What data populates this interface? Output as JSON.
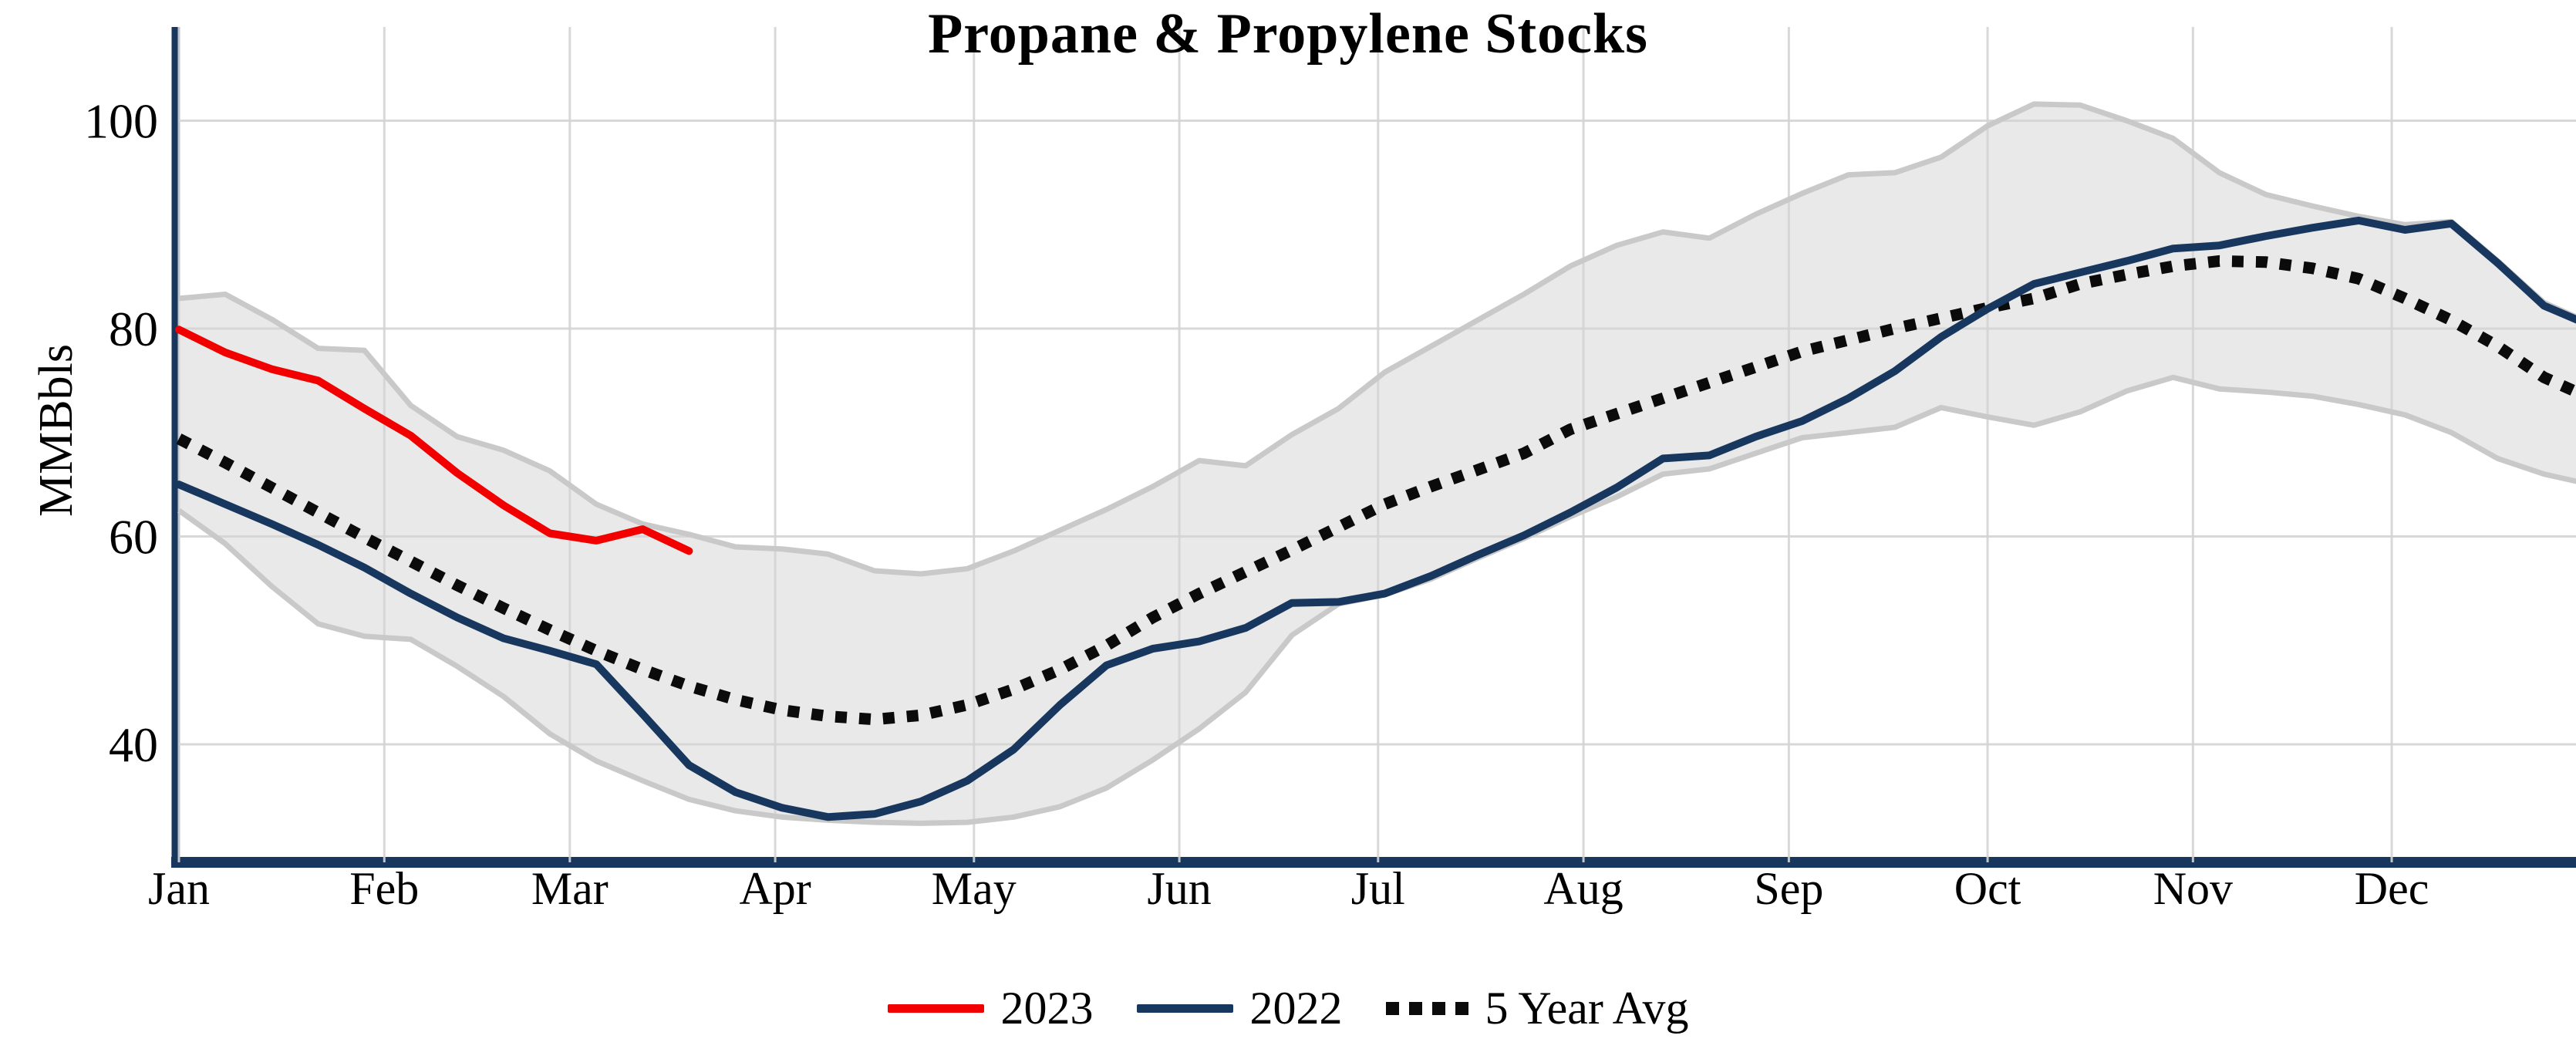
{
  "title": "Propane & Propylene Stocks",
  "chart_data": {
    "type": "line",
    "title": "Propane & Propylene Stocks",
    "ylabel": "MMBbls",
    "xlabel": "",
    "y_ticks": [
      100,
      80,
      60,
      40
    ],
    "ylim": [
      28.5,
      108
    ],
    "x_months": [
      "Jan",
      "Feb",
      "Mar",
      "Apr",
      "May",
      "Jun",
      "Jul",
      "Aug",
      "Sep",
      "Oct",
      "Nov",
      "Dec"
    ],
    "x_month_start_days": [
      0,
      31,
      59,
      90,
      120,
      151,
      181,
      212,
      243,
      273,
      304,
      334
    ],
    "x_unit": "weekly points, Jan through Dec",
    "grid": "on",
    "legend_position": "bottom-center",
    "series": [
      {
        "name": "2023",
        "color": "#f20000",
        "style": "solid",
        "values": [
          79.9,
          77.7,
          76.1,
          75.0,
          72.3,
          69.7,
          66.1,
          63.0,
          60.3,
          59.6,
          60.7,
          58.6
        ]
      },
      {
        "name": "2022",
        "color": "#17375e",
        "style": "solid",
        "values": [
          65.0,
          63.1,
          61.2,
          59.2,
          57.0,
          54.5,
          52.2,
          50.2,
          49.0,
          47.7,
          42.9,
          38.0,
          35.4,
          33.9,
          33.0,
          33.3,
          34.5,
          36.5,
          39.5,
          43.8,
          47.6,
          49.2,
          49.9,
          51.2,
          53.6,
          53.7,
          54.5,
          56.2,
          58.2,
          60.1,
          62.3,
          64.7,
          67.5,
          67.8,
          69.6,
          71.1,
          73.3,
          75.9,
          79.2,
          81.9,
          84.3,
          85.4,
          86.5,
          87.7,
          88.0,
          88.9,
          89.7,
          90.4,
          89.5,
          90.1,
          86.3,
          82.2,
          80.3
        ]
      },
      {
        "name": "5 Year Avg",
        "color": "#0b0b0b",
        "style": "dotted",
        "values": [
          69.4,
          67.1,
          64.7,
          62.3,
          59.9,
          57.6,
          55.3,
          53.1,
          51.0,
          49.0,
          47.2,
          45.6,
          44.3,
          43.3,
          42.7,
          42.4,
          42.8,
          43.8,
          45.3,
          47.2,
          49.5,
          52.2,
          54.5,
          56.6,
          58.7,
          60.9,
          63.1,
          64.8,
          66.4,
          68.0,
          70.3,
          71.8,
          73.3,
          74.8,
          76.3,
          77.8,
          78.9,
          80.0,
          81.0,
          82.0,
          82.9,
          84.3,
          85.2,
          86.0,
          86.5,
          86.4,
          85.8,
          84.8,
          82.9,
          80.8,
          78.3,
          75.3,
          73.3
        ]
      }
    ],
    "band": {
      "name": "5 Year Range",
      "fill": "#e9e9e9",
      "edge": "#c9c9c9",
      "max": [
        82.9,
        83.3,
        80.9,
        78.1,
        77.9,
        72.6,
        69.6,
        68.3,
        66.3,
        63.1,
        61.2,
        60.2,
        59.0,
        58.8,
        58.3,
        56.7,
        56.4,
        56.9,
        58.6,
        60.6,
        62.6,
        64.8,
        67.3,
        66.8,
        69.8,
        72.3,
        75.8,
        78.3,
        80.8,
        83.3,
        86.0,
        88.0,
        89.3,
        88.7,
        91.0,
        93.0,
        94.8,
        95.0,
        96.5,
        99.5,
        101.6,
        101.5,
        100.0,
        98.3,
        95.0,
        92.9,
        91.8,
        90.8,
        90.0,
        90.3,
        86.5,
        82.5,
        80.5
      ],
      "min": [
        62.5,
        59.3,
        55.2,
        51.6,
        50.4,
        50.1,
        47.5,
        44.6,
        41.0,
        38.4,
        36.5,
        34.7,
        33.6,
        33.0,
        32.7,
        32.5,
        32.4,
        32.5,
        33.0,
        34.0,
        35.8,
        38.5,
        41.5,
        45.0,
        50.5,
        53.5,
        54.4,
        55.9,
        57.9,
        59.8,
        61.9,
        63.8,
        66.0,
        66.5,
        68.0,
        69.5,
        70.0,
        70.5,
        72.4,
        71.5,
        70.7,
        72.0,
        74.0,
        75.3,
        74.2,
        73.9,
        73.5,
        72.7,
        71.7,
        70.0,
        67.5,
        66.0,
        65.0
      ]
    },
    "colors": {
      "axis_spine": "#17375e",
      "gridline": "#d4d4d4",
      "background": "#ffffff",
      "text": "#000000"
    }
  },
  "legend": {
    "items": [
      {
        "label": "2023"
      },
      {
        "label": "2022"
      },
      {
        "label": "5 Year Avg"
      }
    ]
  }
}
